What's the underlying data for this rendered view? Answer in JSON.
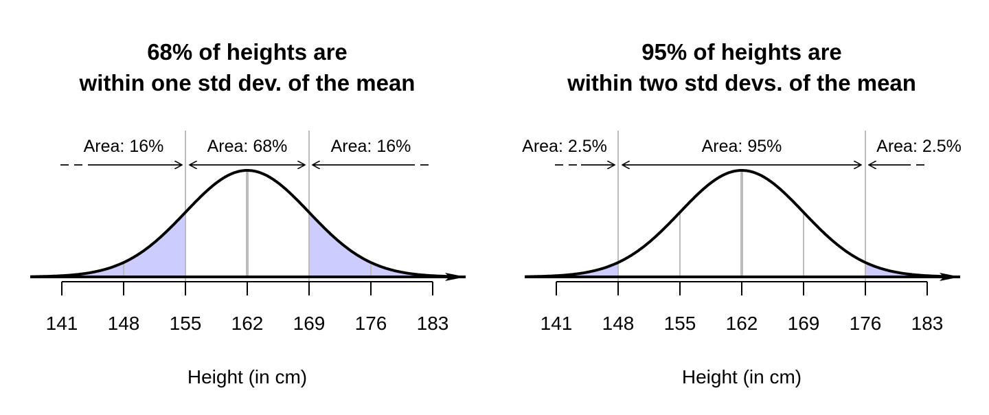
{
  "chart_data": [
    {
      "type": "area",
      "title": [
        "68% of heights are",
        "within one std dev. of the mean"
      ],
      "xlabel": "Height (in cm)",
      "mean": 162,
      "sd": 7,
      "xticks": [
        141,
        148,
        155,
        162,
        169,
        176,
        183
      ],
      "xtick_labels": [
        "141",
        "148",
        "155",
        "162",
        "169",
        "176",
        "183"
      ],
      "xlim": [
        141,
        183
      ],
      "shaded_outside": [
        155,
        169
      ],
      "full_height_lines": [
        155,
        169
      ],
      "curve_lines": [
        148,
        176
      ],
      "regions": [
        {
          "label": "Area: 16%",
          "from": 141,
          "to": 155,
          "direction": "right"
        },
        {
          "label": "Area: 68%",
          "from": 155,
          "to": 169,
          "direction": "both"
        },
        {
          "label": "Area: 16%",
          "from": 169,
          "to": 183,
          "direction": "left"
        }
      ]
    },
    {
      "type": "area",
      "title": [
        "95% of heights are",
        "within two std devs. of the mean"
      ],
      "xlabel": "Height (in cm)",
      "mean": 162,
      "sd": 7,
      "xticks": [
        141,
        148,
        155,
        162,
        169,
        176,
        183
      ],
      "xtick_labels": [
        "141",
        "148",
        "155",
        "162",
        "169",
        "176",
        "183"
      ],
      "xlim": [
        141,
        183
      ],
      "shaded_outside": [
        148,
        176
      ],
      "full_height_lines": [
        148,
        176
      ],
      "curve_lines": [
        155,
        169
      ],
      "regions": [
        {
          "label": "Area: 2.5%",
          "from": 141,
          "to": 148,
          "direction": "right"
        },
        {
          "label": "Area: 95%",
          "from": 148,
          "to": 176,
          "direction": "both"
        },
        {
          "label": "Area: 2.5%",
          "from": 176,
          "to": 183,
          "direction": "left"
        }
      ]
    }
  ],
  "colors": {
    "shade": "#ccccff",
    "curve": "#000000",
    "guide": "#bbbbbb"
  }
}
